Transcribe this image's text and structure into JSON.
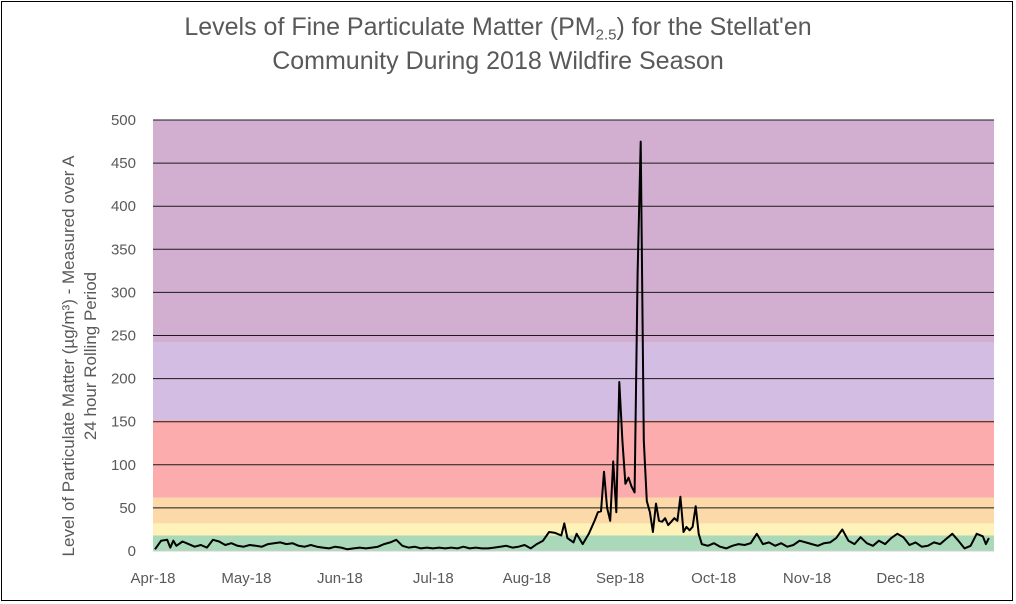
{
  "chart_data": {
    "type": "line",
    "title_pre": "Levels of Fine Particulate Matter (PM",
    "title_sub": "2.5",
    "title_post": ") for the Stellat'en",
    "title_line2": "Community During 2018 Wildfire Season",
    "ylabel_line1": "Level of Particulate Matter (µg/m³) - Measured over A",
    "ylabel_line2": "24 hour Rolling Period",
    "xlabel": "",
    "ylim": [
      0,
      500
    ],
    "y_ticks": [
      0,
      50,
      100,
      150,
      200,
      250,
      300,
      350,
      400,
      450,
      500
    ],
    "x_tick_labels": [
      "Apr-18",
      "May-18",
      "Jun-18",
      "Jul-18",
      "Aug-18",
      "Sep-18",
      "Oct-18",
      "Nov-18",
      "Dec-18"
    ],
    "x_range_days": [
      0,
      274
    ],
    "grid": true,
    "legend": "none",
    "bands": [
      {
        "from": 0,
        "to": 18,
        "color": "#a9d9b8"
      },
      {
        "from": 18,
        "to": 32,
        "color": "#fff2b8"
      },
      {
        "from": 32,
        "to": 62,
        "color": "#fcd9a8"
      },
      {
        "from": 62,
        "to": 152,
        "color": "#fcacac"
      },
      {
        "from": 152,
        "to": 242,
        "color": "#d3bde3"
      },
      {
        "from": 242,
        "to": 500,
        "color": "#d2afd0"
      }
    ],
    "series": [
      {
        "line_color": "#000000",
        "points": [
          [
            0,
            2
          ],
          [
            2,
            12
          ],
          [
            4,
            13
          ],
          [
            5,
            4
          ],
          [
            6,
            12
          ],
          [
            7,
            6
          ],
          [
            9,
            11
          ],
          [
            11,
            8
          ],
          [
            13,
            5
          ],
          [
            15,
            7
          ],
          [
            17,
            4
          ],
          [
            19,
            13
          ],
          [
            21,
            11
          ],
          [
            23,
            7
          ],
          [
            25,
            9
          ],
          [
            27,
            6
          ],
          [
            29,
            5
          ],
          [
            31,
            7
          ],
          [
            33,
            6
          ],
          [
            35,
            5
          ],
          [
            37,
            8
          ],
          [
            39,
            9
          ],
          [
            41,
            10
          ],
          [
            43,
            8
          ],
          [
            45,
            9
          ],
          [
            47,
            6
          ],
          [
            49,
            5
          ],
          [
            51,
            7
          ],
          [
            53,
            5
          ],
          [
            55,
            4
          ],
          [
            57,
            3
          ],
          [
            59,
            5
          ],
          [
            61,
            4
          ],
          [
            63,
            2
          ],
          [
            65,
            3
          ],
          [
            67,
            4
          ],
          [
            69,
            3
          ],
          [
            71,
            4
          ],
          [
            73,
            5
          ],
          [
            75,
            8
          ],
          [
            77,
            10
          ],
          [
            79,
            13
          ],
          [
            81,
            6
          ],
          [
            83,
            4
          ],
          [
            85,
            5
          ],
          [
            87,
            3
          ],
          [
            89,
            4
          ],
          [
            91,
            3
          ],
          [
            93,
            4
          ],
          [
            95,
            3
          ],
          [
            97,
            4
          ],
          [
            99,
            3
          ],
          [
            101,
            5
          ],
          [
            103,
            3
          ],
          [
            105,
            4
          ],
          [
            107,
            3
          ],
          [
            109,
            3
          ],
          [
            111,
            4
          ],
          [
            113,
            5
          ],
          [
            115,
            6
          ],
          [
            117,
            4
          ],
          [
            119,
            5
          ],
          [
            121,
            7
          ],
          [
            123,
            3
          ],
          [
            125,
            8
          ],
          [
            127,
            12
          ],
          [
            129,
            22
          ],
          [
            131,
            21
          ],
          [
            133,
            18
          ],
          [
            134,
            32
          ],
          [
            135,
            15
          ],
          [
            137,
            10
          ],
          [
            138,
            20
          ],
          [
            140,
            8
          ],
          [
            142,
            20
          ],
          [
            144,
            36
          ],
          [
            145,
            45
          ],
          [
            146,
            46
          ],
          [
            147,
            92
          ],
          [
            148,
            50
          ],
          [
            149,
            35
          ],
          [
            150,
            104
          ],
          [
            151,
            45
          ],
          [
            152,
            196
          ],
          [
            153,
            128
          ],
          [
            154,
            78
          ],
          [
            155,
            85
          ],
          [
            156,
            75
          ],
          [
            157,
            68
          ],
          [
            158,
            322
          ],
          [
            159,
            475
          ],
          [
            160,
            128
          ],
          [
            161,
            58
          ],
          [
            162,
            45
          ],
          [
            163,
            22
          ],
          [
            164,
            55
          ],
          [
            165,
            35
          ],
          [
            166,
            34
          ],
          [
            167,
            38
          ],
          [
            168,
            30
          ],
          [
            169,
            34
          ],
          [
            170,
            38
          ],
          [
            171,
            35
          ],
          [
            172,
            63
          ],
          [
            173,
            22
          ],
          [
            174,
            28
          ],
          [
            175,
            24
          ],
          [
            176,
            28
          ],
          [
            177,
            52
          ],
          [
            178,
            20
          ],
          [
            179,
            8
          ],
          [
            181,
            6
          ],
          [
            183,
            9
          ],
          [
            185,
            5
          ],
          [
            187,
            3
          ],
          [
            189,
            6
          ],
          [
            191,
            8
          ],
          [
            193,
            7
          ],
          [
            195,
            9
          ],
          [
            197,
            20
          ],
          [
            199,
            8
          ],
          [
            201,
            10
          ],
          [
            203,
            6
          ],
          [
            205,
            9
          ],
          [
            207,
            5
          ],
          [
            209,
            7
          ],
          [
            211,
            12
          ],
          [
            213,
            10
          ],
          [
            215,
            8
          ],
          [
            217,
            6
          ],
          [
            219,
            9
          ],
          [
            221,
            10
          ],
          [
            223,
            15
          ],
          [
            225,
            25
          ],
          [
            227,
            12
          ],
          [
            229,
            8
          ],
          [
            231,
            16
          ],
          [
            233,
            9
          ],
          [
            235,
            6
          ],
          [
            237,
            12
          ],
          [
            239,
            8
          ],
          [
            241,
            15
          ],
          [
            243,
            20
          ],
          [
            245,
            16
          ],
          [
            247,
            7
          ],
          [
            249,
            10
          ],
          [
            251,
            5
          ],
          [
            253,
            6
          ],
          [
            255,
            10
          ],
          [
            257,
            8
          ],
          [
            259,
            14
          ],
          [
            261,
            20
          ],
          [
            263,
            12
          ],
          [
            265,
            3
          ],
          [
            267,
            6
          ],
          [
            269,
            20
          ],
          [
            271,
            17
          ],
          [
            272,
            8
          ],
          [
            273,
            15
          ]
        ]
      }
    ]
  }
}
